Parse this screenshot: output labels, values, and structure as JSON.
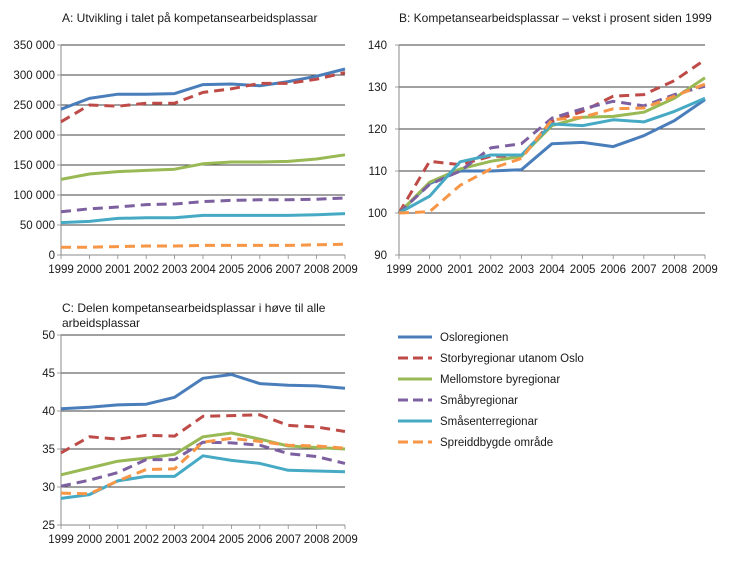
{
  "chart_data": [
    {
      "type": "line",
      "title": "A: Utvikling i talet på kompetansearbeidsplassar",
      "x": [
        1999,
        2000,
        2001,
        2002,
        2003,
        2004,
        2005,
        2006,
        2007,
        2008,
        2009
      ],
      "ylim": [
        0,
        350000
      ],
      "yticks": [
        0,
        50000,
        100000,
        150000,
        200000,
        250000,
        300000,
        350000
      ],
      "ytick_labels": [
        "0",
        "50 000",
        "100 000",
        "150 000",
        "200 000",
        "250 000",
        "300 000",
        "350 000"
      ],
      "grid": true,
      "series": [
        {
          "name": "Osloregionen",
          "values": [
            243000,
            261000,
            268000,
            268000,
            269000,
            284000,
            285000,
            282000,
            289000,
            298000,
            310000
          ]
        },
        {
          "name": "Storbyregionar utanom Oslo",
          "values": [
            222000,
            250000,
            248000,
            253000,
            253000,
            271000,
            277000,
            286000,
            286000,
            293000,
            304000
          ]
        },
        {
          "name": "Mellomstore byregionar",
          "values": [
            126000,
            135000,
            139000,
            141000,
            143000,
            152000,
            155000,
            155000,
            156000,
            160000,
            167000
          ]
        },
        {
          "name": "Småbyregionar",
          "values": [
            72000,
            77000,
            80000,
            84000,
            85000,
            89000,
            91000,
            92000,
            92000,
            93000,
            95000
          ]
        },
        {
          "name": "Småsenterregionar",
          "values": [
            54000,
            56000,
            61000,
            62000,
            62000,
            66000,
            66000,
            66000,
            66000,
            67000,
            69000
          ]
        },
        {
          "name": "Spreiddbygde område",
          "values": [
            13000,
            13000,
            14000,
            15000,
            15000,
            16000,
            16000,
            16000,
            16000,
            17000,
            18000
          ]
        }
      ]
    },
    {
      "type": "line",
      "title": "B: Kompetansearbeidsplassar – vekst i prosent siden 1999",
      "x": [
        1999,
        2000,
        2001,
        2002,
        2003,
        2004,
        2005,
        2006,
        2007,
        2008,
        2009
      ],
      "ylim": [
        90,
        140
      ],
      "yticks": [
        90,
        100,
        110,
        120,
        130,
        140
      ],
      "ytick_labels": [
        "90",
        "100",
        "110",
        "120",
        "130",
        "140"
      ],
      "grid": true,
      "series": [
        {
          "name": "Osloregionen",
          "values": [
            100,
            107,
            110,
            110,
            110.3,
            116.5,
            116.8,
            115.8,
            118.4,
            122,
            127
          ]
        },
        {
          "name": "Storbyregionar utanom Oslo",
          "values": [
            100,
            112.3,
            111.5,
            113.5,
            113.5,
            121.8,
            124.2,
            127.8,
            128.2,
            131.5,
            136.5
          ]
        },
        {
          "name": "Mellomstore byregionar",
          "values": [
            100,
            107.3,
            110.5,
            112.3,
            113.5,
            120.8,
            122.8,
            123,
            124,
            127.3,
            132.2
          ]
        },
        {
          "name": "Småbyregionar",
          "values": [
            100,
            106.8,
            110,
            115.5,
            116.5,
            122.6,
            124.8,
            126.6,
            125.5,
            128.2,
            130.2
          ]
        },
        {
          "name": "Småsenterregionar",
          "values": [
            100,
            104,
            112.2,
            113.8,
            113.8,
            121.2,
            120.8,
            122.2,
            121.7,
            124.2,
            127.3
          ]
        },
        {
          "name": "Spreiddbygde område",
          "values": [
            100,
            100.3,
            106.6,
            110.5,
            113,
            122.2,
            122.8,
            124.8,
            125,
            127.8,
            130.7
          ]
        }
      ]
    },
    {
      "type": "line",
      "title": "C: Delen kompetansearbeidsplassar i høve til alle",
      "title_line2": "arbeidsplassar",
      "x": [
        1999,
        2000,
        2001,
        2002,
        2003,
        2004,
        2005,
        2006,
        2007,
        2008,
        2009
      ],
      "ylim": [
        25,
        50
      ],
      "yticks": [
        25,
        30,
        35,
        40,
        45,
        50
      ],
      "ytick_labels": [
        "25",
        "30",
        "35",
        "40",
        "45",
        "50"
      ],
      "grid": true,
      "series": [
        {
          "name": "Osloregionen",
          "values": [
            40.3,
            40.5,
            40.8,
            40.9,
            41.8,
            44.3,
            44.8,
            43.6,
            43.4,
            43.3,
            43
          ]
        },
        {
          "name": "Storbyregionar utanom Oslo",
          "values": [
            34.5,
            36.6,
            36.3,
            36.8,
            36.7,
            39.3,
            39.4,
            39.5,
            38.1,
            37.9,
            37.3
          ]
        },
        {
          "name": "Mellomstore byregionar",
          "values": [
            31.6,
            32.5,
            33.4,
            33.8,
            34.3,
            36.6,
            37.1,
            36.3,
            35.4,
            35.2,
            35
          ]
        },
        {
          "name": "Småbyregionar",
          "values": [
            30.1,
            30.9,
            31.9,
            33.6,
            33.6,
            35.9,
            35.8,
            35.5,
            34.4,
            34,
            33.1
          ]
        },
        {
          "name": "Småsenterregionar",
          "values": [
            28.5,
            29,
            30.8,
            31.4,
            31.4,
            34.1,
            33.5,
            33.1,
            32.2,
            32.1,
            32
          ]
        },
        {
          "name": "Spreiddbygde område",
          "values": [
            29.2,
            29.1,
            30.8,
            32.3,
            32.4,
            35.9,
            36.4,
            36,
            35.5,
            35.4,
            35.1
          ]
        }
      ]
    }
  ],
  "legend": {
    "placement": "right of panel C",
    "items": [
      {
        "label": "Osloregionen",
        "color": "#4a7ebb",
        "dashed": false
      },
      {
        "label": "Storbyregionar utanom Oslo",
        "color": "#be4b48",
        "dashed": true
      },
      {
        "label": "Mellomstore byregionar",
        "color": "#98b954",
        "dashed": false
      },
      {
        "label": "Småbyregionar",
        "color": "#7d60a0",
        "dashed": true
      },
      {
        "label": "Småsenterregionar",
        "color": "#46aac5",
        "dashed": false
      },
      {
        "label": "Spreiddbygde område",
        "color": "#f79646",
        "dashed": true
      }
    ]
  }
}
